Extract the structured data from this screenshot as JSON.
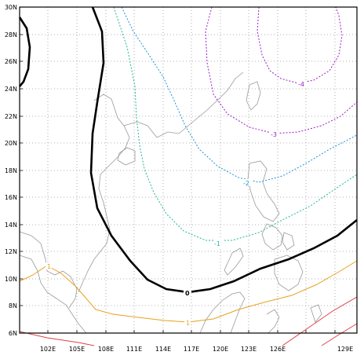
{
  "map": {
    "y_axis_labels": [
      "30N",
      "28N",
      "26N",
      "24N",
      "22N",
      "20N",
      "18N",
      "16N",
      "14N",
      "12N",
      "10N",
      "8N",
      "6N"
    ],
    "x_axis_labels": [
      "102E",
      "105E",
      "108E",
      "111E",
      "114E",
      "117E",
      "120E",
      "123E",
      "126E",
      "129E"
    ],
    "contour_labels": [
      {
        "text": "-4",
        "color": "#9a1fc4"
      },
      {
        "text": "-3",
        "color": "#9a1fc4"
      },
      {
        "text": "-2",
        "color": "#1a93d6"
      },
      {
        "text": "-1",
        "color": "#1fb59a"
      },
      {
        "text": "0",
        "color": "#000000"
      },
      {
        "text": "1",
        "color": "#e8a020"
      },
      {
        "text": "1",
        "color": "#e8a020"
      }
    ],
    "colors": {
      "contour_neg4_3": "#9a1fc4",
      "contour_neg2": "#1a93d6",
      "contour_neg1": "#1fb59a",
      "contour_zero": "#000000",
      "contour_pos1": "#e8a020",
      "contour_pos2": "#e0404a",
      "coastline": "#9a9a9a",
      "grid": "#9a9a9a"
    }
  }
}
